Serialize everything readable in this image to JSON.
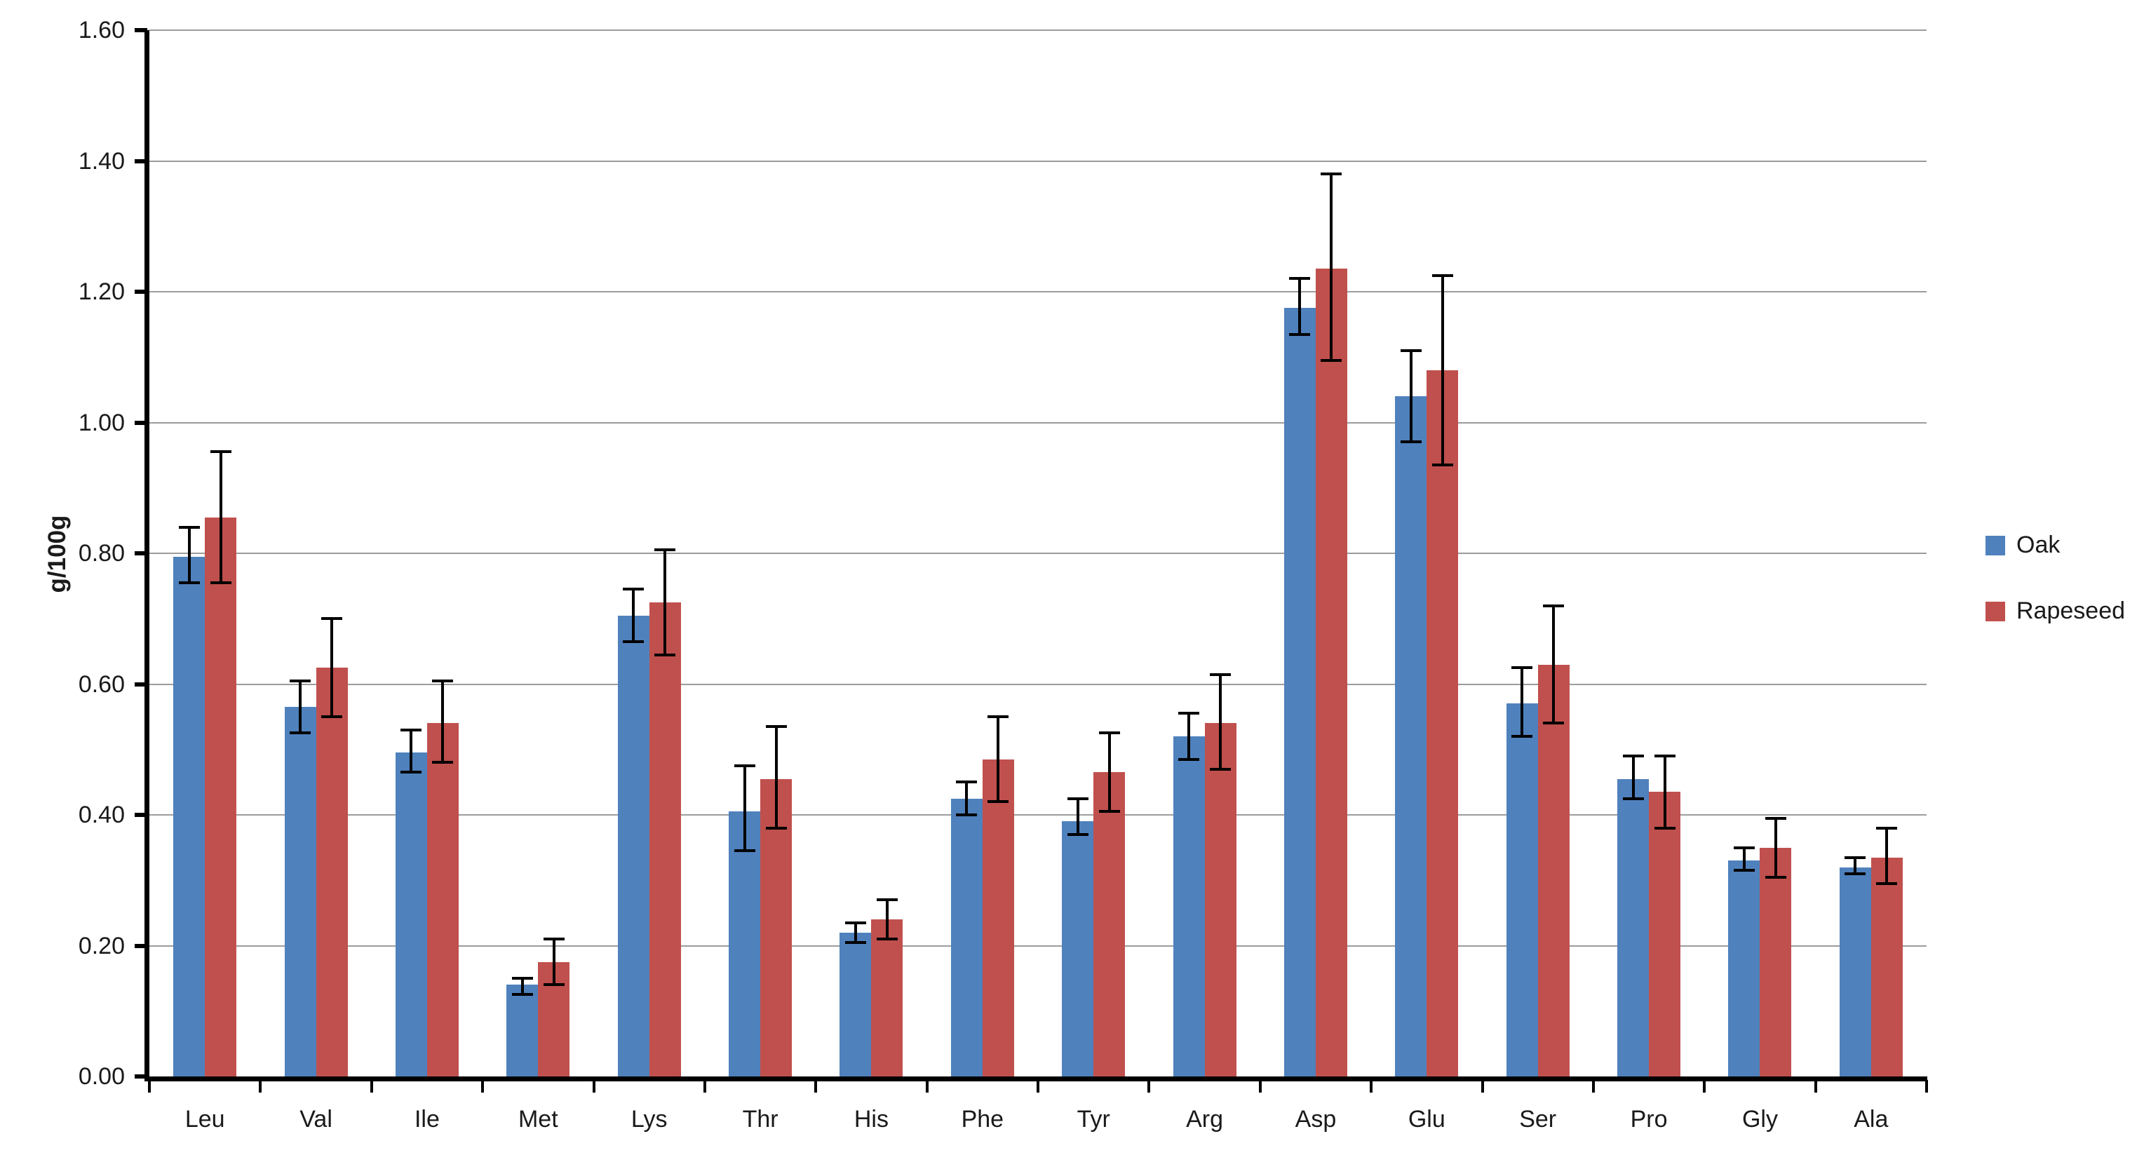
{
  "chart_data": {
    "type": "bar",
    "title": "",
    "xlabel": "",
    "ylabel": "g/100g",
    "ylim": [
      0,
      1.6
    ],
    "y_ticks": [
      "0.00",
      "0.20",
      "0.40",
      "0.60",
      "0.80",
      "1.00",
      "1.20",
      "1.40",
      "1.60"
    ],
    "grid": true,
    "grid_color": "#9C9C9C",
    "error_bar_color": "#000000",
    "legend_position": "right",
    "categories": [
      "Leu",
      "Val",
      "Ile",
      "Met",
      "Lys",
      "Thr",
      "His",
      "Phe",
      "Tyr",
      "Arg",
      "Asp",
      "Glu",
      "Ser",
      "Pro",
      "Gly",
      "Ala"
    ],
    "series": [
      {
        "name": "Oak",
        "color": "#4F81BD",
        "values": [
          0.795,
          0.565,
          0.495,
          0.14,
          0.705,
          0.405,
          0.22,
          0.425,
          0.39,
          0.52,
          1.175,
          1.04,
          0.57,
          0.455,
          0.33,
          0.32
        ],
        "error_low": [
          0.755,
          0.525,
          0.465,
          0.125,
          0.665,
          0.345,
          0.205,
          0.4,
          0.37,
          0.485,
          1.135,
          0.97,
          0.52,
          0.425,
          0.315,
          0.31
        ],
        "error_high": [
          0.84,
          0.605,
          0.53,
          0.15,
          0.745,
          0.475,
          0.235,
          0.45,
          0.425,
          0.555,
          1.22,
          1.11,
          0.625,
          0.49,
          0.35,
          0.335
        ]
      },
      {
        "name": "Rapeseed",
        "color": "#C0504D",
        "values": [
          0.855,
          0.625,
          0.54,
          0.175,
          0.725,
          0.455,
          0.24,
          0.485,
          0.465,
          0.54,
          1.235,
          1.08,
          0.63,
          0.435,
          0.35,
          0.335
        ],
        "error_low": [
          0.755,
          0.55,
          0.48,
          0.14,
          0.645,
          0.38,
          0.21,
          0.42,
          0.405,
          0.47,
          1.095,
          0.935,
          0.54,
          0.38,
          0.305,
          0.295
        ],
        "error_high": [
          0.955,
          0.7,
          0.605,
          0.21,
          0.805,
          0.535,
          0.27,
          0.55,
          0.525,
          0.615,
          1.38,
          1.225,
          0.72,
          0.49,
          0.395,
          0.38
        ]
      }
    ]
  }
}
